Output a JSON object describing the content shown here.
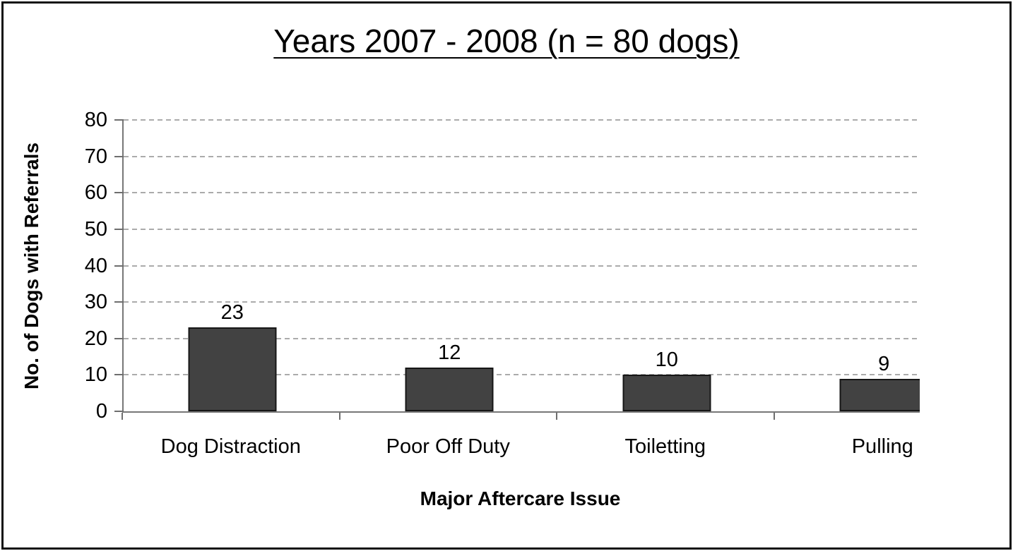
{
  "chart_data": {
    "type": "bar",
    "title": "Years 2007 - 2008 (n = 80 dogs)",
    "xlabel": "Major Aftercare Issue",
    "ylabel": "No. of Dogs with Referrals",
    "categories": [
      "Dog Distraction",
      "Poor Off Duty",
      "Toiletting",
      "Pulling"
    ],
    "values": [
      23,
      12,
      10,
      9
    ],
    "data_labels": [
      "23",
      "12",
      "10",
      "9"
    ],
    "ylim": [
      0,
      80
    ],
    "ytick_step": 10,
    "ytick_labels": [
      "0",
      "10",
      "20",
      "30",
      "40",
      "50",
      "60",
      "70",
      "80"
    ],
    "grid": "horizontal-dashed",
    "legend_position": "none",
    "colors": {
      "bar_fill": "#424242",
      "bar_border": "#161616",
      "gridline": "#ababab",
      "axis_line": "#777777",
      "text": "#000000",
      "background": "#ffffff",
      "frame_border": "#111111"
    }
  }
}
